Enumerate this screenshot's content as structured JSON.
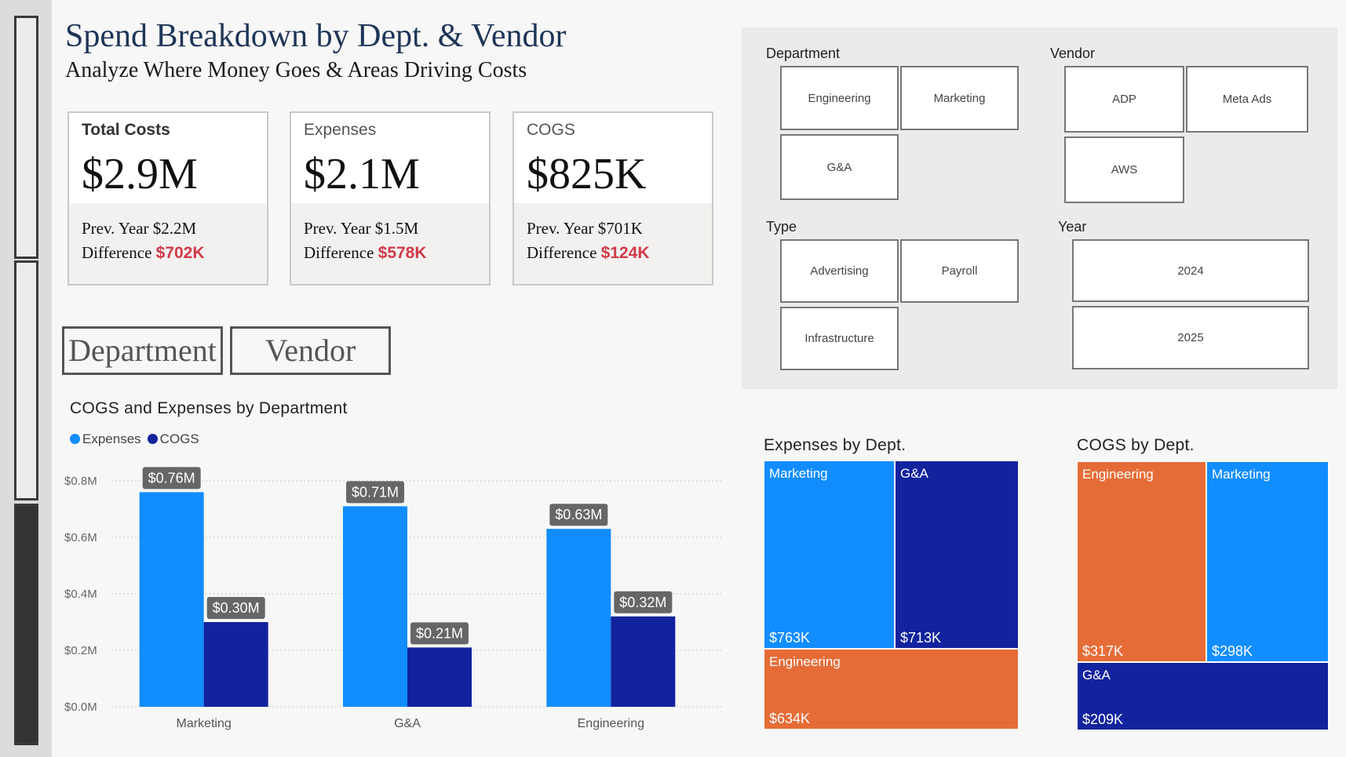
{
  "header": {
    "title": "Spend Breakdown by Dept. & Vendor",
    "subtitle": "Analyze Where Money Goes & Areas Driving Costs"
  },
  "kpis": [
    {
      "label": "Total Costs",
      "value": "$2.9M",
      "prev": "Prev. Year $2.2M",
      "diff_label": "Difference",
      "diff_value": "$702K"
    },
    {
      "label": "Expenses",
      "value": "$2.1M",
      "prev": "Prev. Year $1.5M",
      "diff_label": "Difference",
      "diff_value": "$578K"
    },
    {
      "label": "COGS",
      "value": "$825K",
      "prev": "Prev. Year $701K",
      "diff_label": "Difference",
      "diff_value": "$124K"
    }
  ],
  "toggles": {
    "department": "Department",
    "vendor": "Vendor"
  },
  "slicers": {
    "department": {
      "label": "Department",
      "options": [
        "Engineering",
        "Marketing",
        "G&A"
      ]
    },
    "vendor": {
      "label": "Vendor",
      "options": [
        "ADP",
        "Meta Ads",
        "AWS"
      ]
    },
    "type": {
      "label": "Type",
      "options": [
        "Advertising",
        "Payroll",
        "Infrastructure"
      ]
    },
    "year": {
      "label": "Year",
      "options": [
        "2024",
        "2025"
      ]
    }
  },
  "chart_data": {
    "type": "bar",
    "title": "COGS and Expenses by Department",
    "categories": [
      "Marketing",
      "G&A",
      "Engineering"
    ],
    "series": [
      {
        "name": "Expenses",
        "color": "#118dff",
        "values": [
          0.76,
          0.71,
          0.63
        ],
        "labels": [
          "$0.76M",
          "$0.71M",
          "$0.63M"
        ]
      },
      {
        "name": "COGS",
        "color": "#12239e",
        "values": [
          0.3,
          0.21,
          0.32
        ],
        "labels": [
          "$0.30M",
          "$0.21M",
          "$0.32M"
        ]
      }
    ],
    "yticks": [
      0,
      0.2,
      0.4,
      0.6,
      0.8
    ],
    "ytick_labels": [
      "$0.0M",
      "$0.2M",
      "$0.4M",
      "$0.6M",
      "$0.8M"
    ],
    "ylim": [
      0,
      0.8
    ],
    "xlabel": "",
    "ylabel": "",
    "legend": "top-left"
  },
  "treemaps": {
    "expenses": {
      "title": "Expenses by Dept.",
      "tiles": [
        {
          "name": "Marketing",
          "value": "$763K",
          "color": "#118dff"
        },
        {
          "name": "G&A",
          "value": "$713K",
          "color": "#12239e"
        },
        {
          "name": "Engineering",
          "value": "$634K",
          "color": "#e66c37"
        }
      ]
    },
    "cogs": {
      "title": "COGS by Dept.",
      "tiles": [
        {
          "name": "Engineering",
          "value": "$317K",
          "color": "#e66c37"
        },
        {
          "name": "Marketing",
          "value": "$298K",
          "color": "#118dff"
        },
        {
          "name": "G&A",
          "value": "$209K",
          "color": "#12239e"
        }
      ]
    }
  }
}
